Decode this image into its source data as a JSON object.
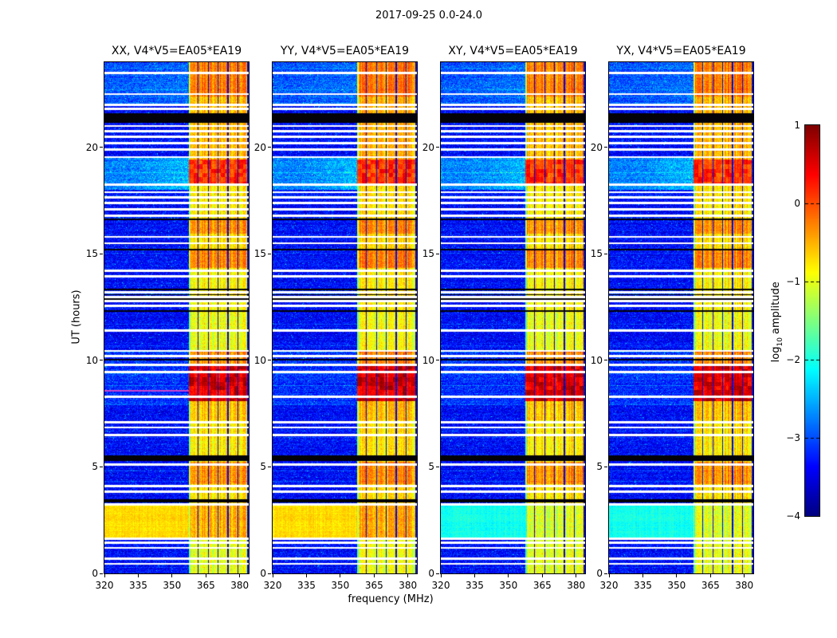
{
  "chart_data": {
    "type": "heatmap",
    "title": "2017-09-25 0.0-24.0",
    "xlabel": "frequency (MHz)",
    "ylabel": "UT (hours)",
    "x_range": [
      320,
      384
    ],
    "y_range": [
      0,
      24
    ],
    "x_ticks": [
      320,
      335,
      350,
      365,
      380
    ],
    "y_ticks": [
      0,
      5,
      10,
      15,
      20
    ],
    "panels": [
      {
        "pol": "XX",
        "title": "XX, V4*V5=EA05*EA19"
      },
      {
        "pol": "YY",
        "title": "YY, V4*V5=EA05*EA19"
      },
      {
        "pol": "XY",
        "title": "XY, V4*V5=EA05*EA19"
      },
      {
        "pol": "YX",
        "title": "YX, V4*V5=EA05*EA19"
      }
    ],
    "colorbar": {
      "label": "log10 amplitude",
      "label_parts": {
        "prefix": "log",
        "sub": "10",
        "suffix": " amplitude"
      },
      "ticks": [
        1,
        0,
        -1,
        -2,
        -3,
        -4
      ],
      "dashed_tick_lines": [
        0,
        -1,
        -2,
        -3
      ],
      "range": [
        -4,
        1
      ],
      "colormap": "jet"
    },
    "features": {
      "background_level": -3.35,
      "rfi_band_mhz": [
        357.5,
        384
      ],
      "stripe_period_mhz": 4.4,
      "yellow_band_ut": [
        1.65,
        3.2
      ],
      "magenta_row": {
        "panel_index": 0,
        "ut": 8.57
      },
      "band_segments": [
        [
          0,
          1.65,
          -1.0
        ],
        [
          1.65,
          3.2,
          -0.55
        ],
        [
          3.2,
          4.2,
          -0.75
        ],
        [
          4.2,
          5.25,
          -0.35
        ],
        [
          5.25,
          7.2,
          -0.8
        ],
        [
          7.2,
          8.1,
          -0.6
        ],
        [
          8.1,
          9.75,
          0.55
        ],
        [
          9.75,
          10.5,
          -0.35
        ],
        [
          10.5,
          12.25,
          -0.95
        ],
        [
          12.25,
          14.35,
          -0.85
        ],
        [
          14.35,
          15.25,
          -0.3
        ],
        [
          15.25,
          15.95,
          -0.75
        ],
        [
          15.95,
          16.6,
          -0.35
        ],
        [
          16.6,
          18.3,
          -0.8
        ],
        [
          18.3,
          19.45,
          0.15
        ],
        [
          19.45,
          21.6,
          -0.55
        ],
        [
          21.6,
          22.4,
          -0.55
        ],
        [
          22.4,
          24.01,
          -0.25
        ]
      ],
      "background_segments": [
        [
          7.9,
          10.5,
          -3.15,
          0
        ],
        [
          18.0,
          19.55,
          -2.75,
          0.55
        ],
        [
          21.95,
          24.01,
          -2.95,
          0.25
        ]
      ],
      "white_gaps_ut": [
        0.45,
        0.7,
        1.2,
        1.45,
        1.62,
        3.25,
        3.85,
        4.1,
        5.1,
        6.5,
        6.85,
        7.1,
        8.3,
        9.45,
        9.8,
        10.2,
        10.45,
        11.4,
        12.55,
        12.78,
        12.97,
        13.2,
        13.95,
        14.2,
        15.5,
        15.8,
        16.8,
        17.1,
        17.4,
        17.65,
        17.9,
        18.25,
        19.55,
        19.9,
        20.2,
        20.5,
        20.75,
        21.0,
        21.8,
        22.0,
        22.5,
        23.5
      ],
      "black_bands_ut": [
        [
          3.32,
          3.5
        ],
        [
          5.28,
          5.54
        ],
        [
          10.0,
          10.07
        ],
        [
          12.28,
          12.35
        ],
        [
          12.86,
          12.92
        ],
        [
          13.05,
          13.12
        ],
        [
          13.28,
          13.35
        ],
        [
          15.18,
          15.25
        ],
        [
          16.6,
          16.66
        ],
        [
          21.15,
          21.62
        ]
      ]
    }
  }
}
